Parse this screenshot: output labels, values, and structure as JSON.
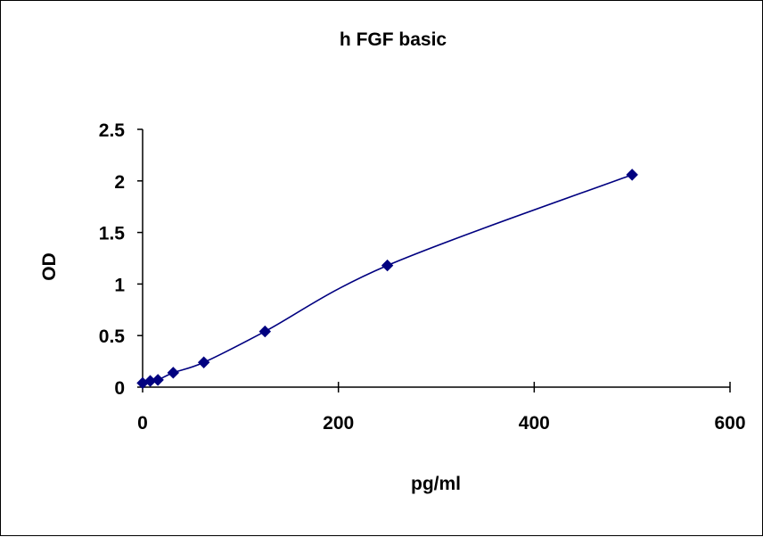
{
  "chart_data": {
    "type": "scatter",
    "title": "h FGF basic",
    "xlabel": "pg/ml",
    "ylabel": "OD",
    "xlim": [
      0,
      600
    ],
    "ylim": [
      0,
      2.5
    ],
    "x_ticks": [
      "0",
      "200",
      "400",
      "600"
    ],
    "y_ticks": [
      "0",
      "0.5",
      "1",
      "1.5",
      "2",
      "2.5"
    ],
    "grid": false,
    "legend": "none",
    "series": [
      {
        "x": [
          0,
          7.8,
          15.6,
          31.25,
          62.5,
          125,
          250,
          500
        ],
        "y": [
          0.04,
          0.06,
          0.07,
          0.14,
          0.24,
          0.54,
          1.18,
          2.06
        ],
        "marker": "diamond",
        "smoothed_line": true,
        "color": "#000080"
      }
    ]
  }
}
